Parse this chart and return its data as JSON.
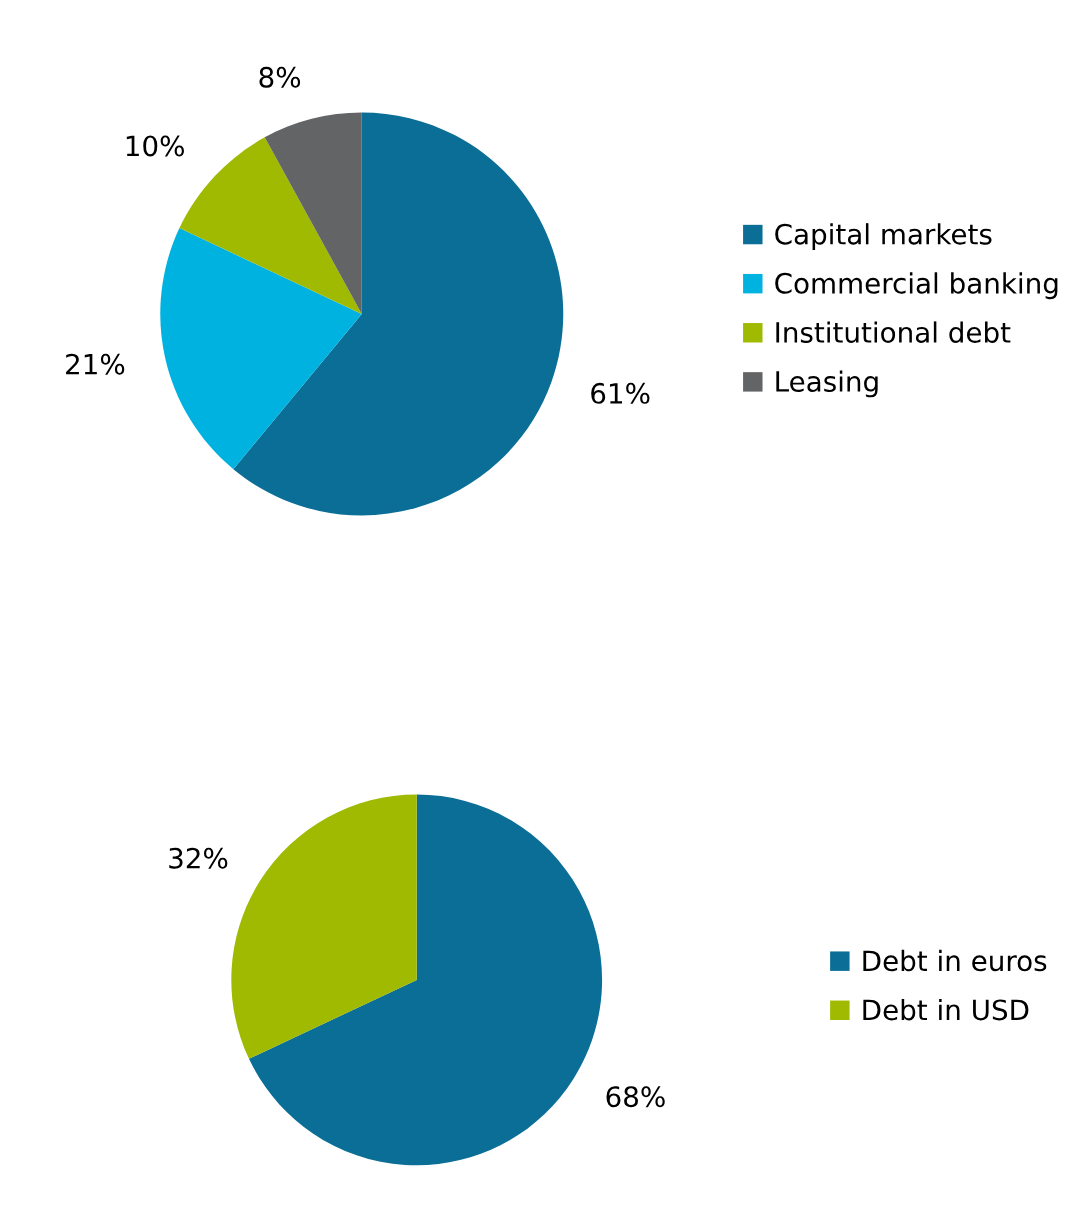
{
  "chart_data": [
    {
      "type": "pie",
      "categories": [
        "Capital markets",
        "Commercial banking",
        "Institutional debt",
        "Leasing"
      ],
      "values": [
        61,
        21,
        10,
        8
      ],
      "colors": [
        "#0b6e96",
        "#00b2e0",
        "#9fba00",
        "#636466"
      ],
      "value_labels": [
        "61%",
        "21%",
        "10%",
        "8%"
      ],
      "legend": "right"
    },
    {
      "type": "pie",
      "categories": [
        "Debt in euros",
        "Debt in USD"
      ],
      "values": [
        68,
        32
      ],
      "colors": [
        "#0b6e96",
        "#9fba00"
      ],
      "value_labels": [
        "68%",
        "32%"
      ],
      "legend": "right"
    }
  ]
}
